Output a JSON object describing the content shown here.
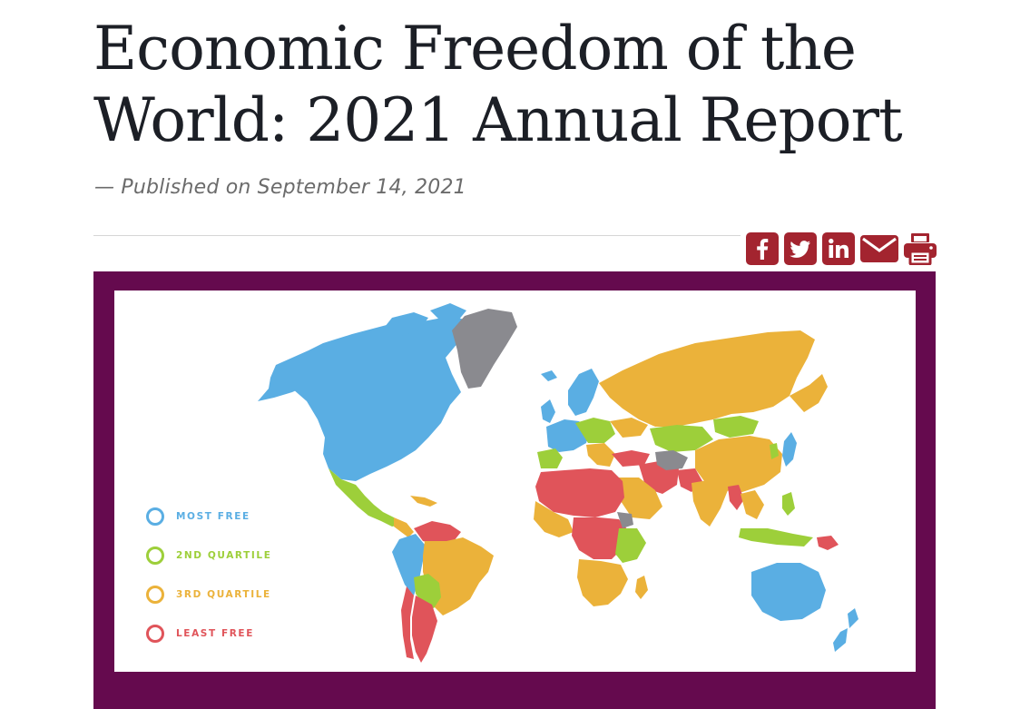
{
  "article": {
    "title": "Economic Freedom of the World: 2021 Annual Report",
    "byline": "— Published on September 14, 2021"
  },
  "share": {
    "accent_color": "#a3242f",
    "buttons": [
      {
        "name": "facebook",
        "icon": "facebook-icon"
      },
      {
        "name": "twitter",
        "icon": "twitter-icon"
      },
      {
        "name": "linkedin",
        "icon": "linkedin-icon"
      },
      {
        "name": "email",
        "icon": "envelope-icon"
      },
      {
        "name": "print",
        "icon": "printer-icon"
      }
    ]
  },
  "map": {
    "frame_color": "#650a4e",
    "legend": [
      {
        "label": "MOST FREE",
        "color": "#5aaee3"
      },
      {
        "label": "2ND QUARTILE",
        "color": "#9dcf3a"
      },
      {
        "label": "3RD QUARTILE",
        "color": "#ebb23a"
      },
      {
        "label": "LEAST FREE",
        "color": "#e0545a"
      }
    ],
    "no_data_color": "#8a8a8f"
  }
}
